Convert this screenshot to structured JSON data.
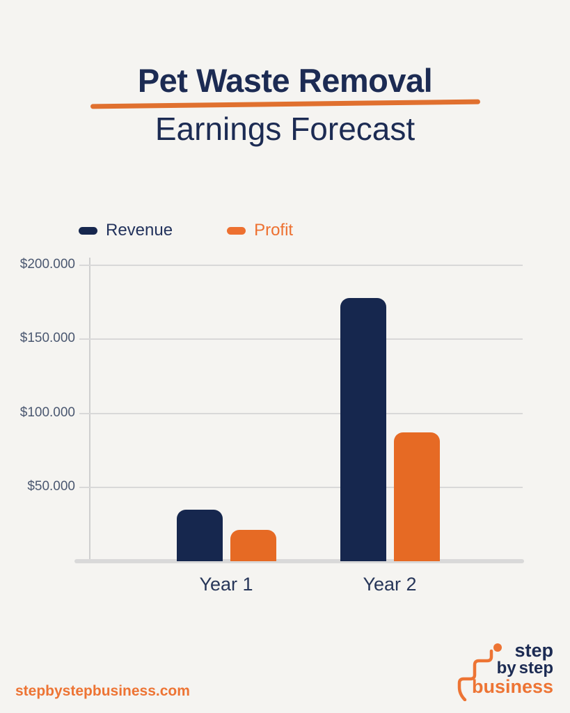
{
  "title": {
    "line1": "Pet Waste Removal",
    "line2": "Earnings Forecast",
    "text_color": "#1C2B53",
    "underline_color": "#E0702F"
  },
  "legend": {
    "items": [
      {
        "label": "Revenue",
        "swatch_color": "#16274E",
        "text_color": "#22325C"
      },
      {
        "label": "Profit",
        "swatch_color": "#ED7030",
        "text_color": "#ED7030"
      }
    ]
  },
  "chart_data": {
    "type": "bar",
    "title": "Pet Waste Removal Earnings Forecast",
    "categories": [
      "Year 1",
      "Year 2"
    ],
    "series": [
      {
        "name": "Revenue",
        "color": "#16274E",
        "values": [
          35000,
          178000
        ]
      },
      {
        "name": "Profit",
        "color": "#E66A24",
        "values": [
          21000,
          87000
        ]
      }
    ],
    "xlabel": "",
    "ylabel": "",
    "ylim": [
      0,
      200000
    ],
    "yticks": [
      {
        "value": 200000,
        "label": "$200.000"
      },
      {
        "value": 150000,
        "label": "$150.000"
      },
      {
        "value": 100000,
        "label": "$100.000"
      },
      {
        "value": 50000,
        "label": "$50.000"
      }
    ],
    "grid": true,
    "legend_position": "top-left"
  },
  "footer": {
    "website": "stepbystepbusiness.com",
    "logo": {
      "word1": "step",
      "word2": "by",
      "word3": "step",
      "word4": "business",
      "navy": "#1C2B53",
      "orange": "#ED7434"
    }
  }
}
